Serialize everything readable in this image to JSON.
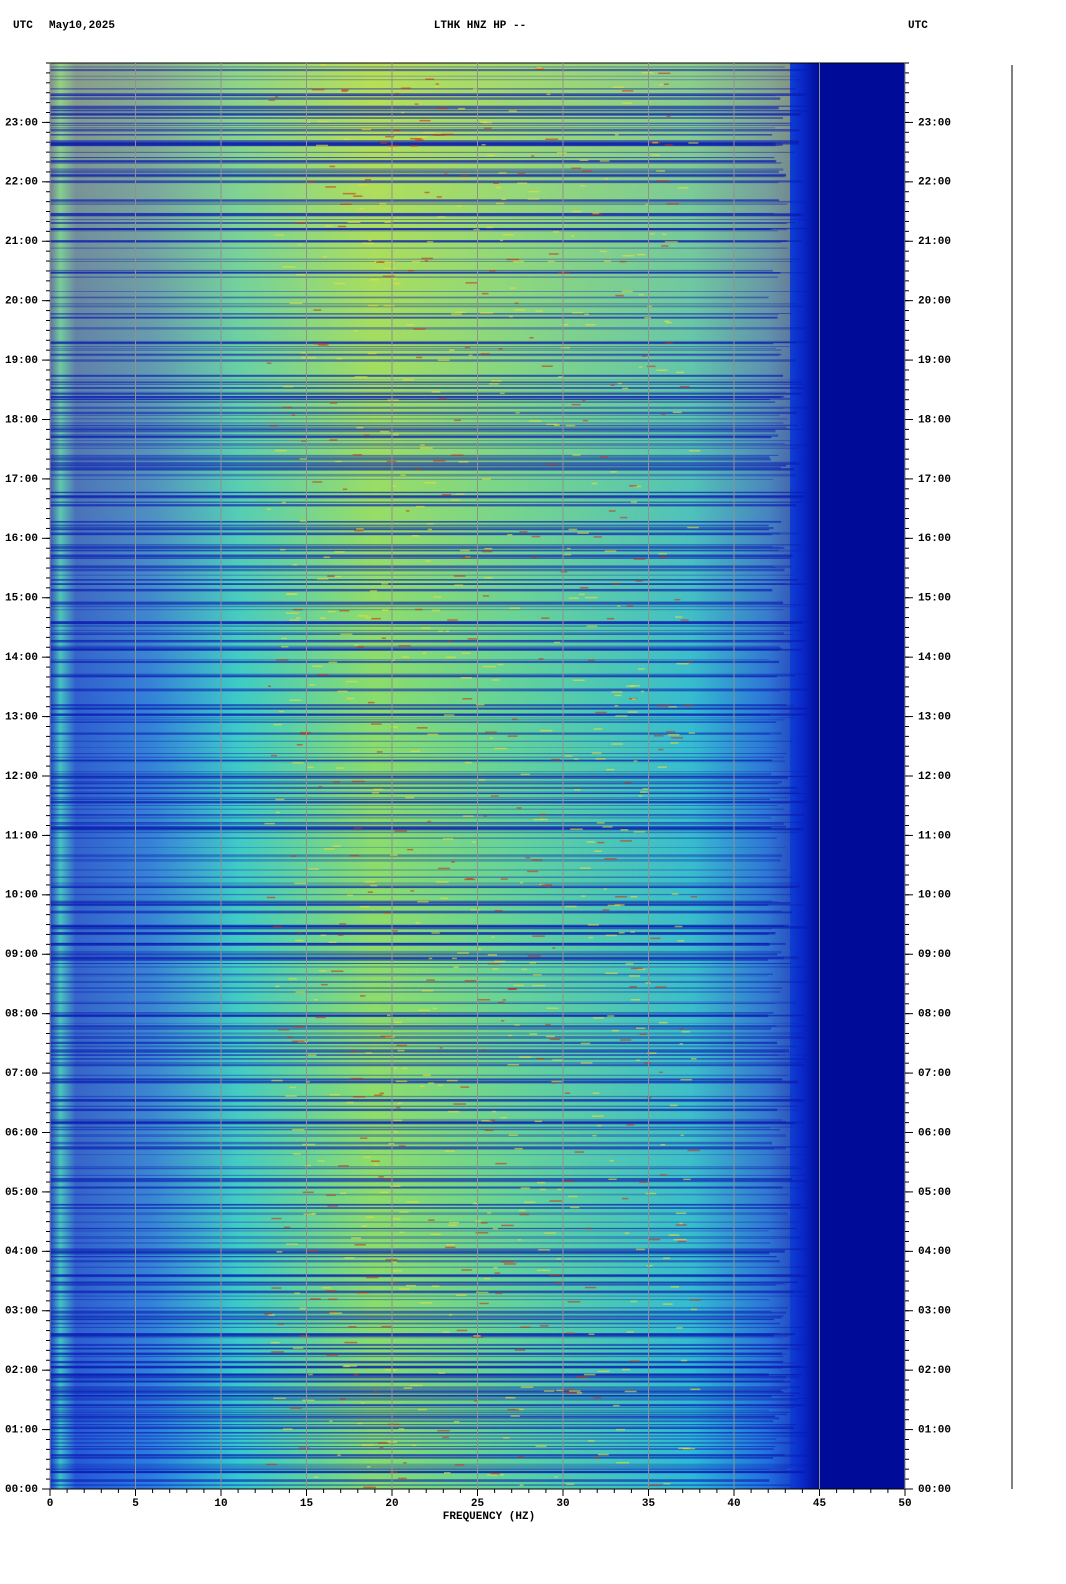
{
  "chart_data": {
    "type": "spectrogram",
    "title": "LTHK HNZ HP --",
    "timezone_left": "UTC",
    "date": "May10,2025",
    "timezone_right": "UTC",
    "xlabel": "FREQUENCY (HZ)",
    "xlim": [
      0,
      50
    ],
    "xticks": [
      0,
      5,
      10,
      15,
      20,
      25,
      30,
      35,
      40,
      45,
      50
    ],
    "ylim": [
      0,
      24
    ],
    "yticks": [
      {
        "value": 0,
        "label": "00:00"
      },
      {
        "value": 1,
        "label": "01:00"
      },
      {
        "value": 2,
        "label": "02:00"
      },
      {
        "value": 3,
        "label": "03:00"
      },
      {
        "value": 4,
        "label": "04:00"
      },
      {
        "value": 5,
        "label": "05:00"
      },
      {
        "value": 6,
        "label": "06:00"
      },
      {
        "value": 7,
        "label": "07:00"
      },
      {
        "value": 8,
        "label": "08:00"
      },
      {
        "value": 9,
        "label": "09:00"
      },
      {
        "value": 10,
        "label": "10:00"
      },
      {
        "value": 11,
        "label": "11:00"
      },
      {
        "value": 12,
        "label": "12:00"
      },
      {
        "value": 13,
        "label": "13:00"
      },
      {
        "value": 14,
        "label": "14:00"
      },
      {
        "value": 15,
        "label": "15:00"
      },
      {
        "value": 16,
        "label": "16:00"
      },
      {
        "value": 17,
        "label": "17:00"
      },
      {
        "value": 18,
        "label": "18:00"
      },
      {
        "value": 19,
        "label": "19:00"
      },
      {
        "value": 20,
        "label": "20:00"
      },
      {
        "value": 21,
        "label": "21:00"
      },
      {
        "value": 22,
        "label": "22:00"
      },
      {
        "value": 23,
        "label": "23:00"
      }
    ],
    "grid": true
  }
}
